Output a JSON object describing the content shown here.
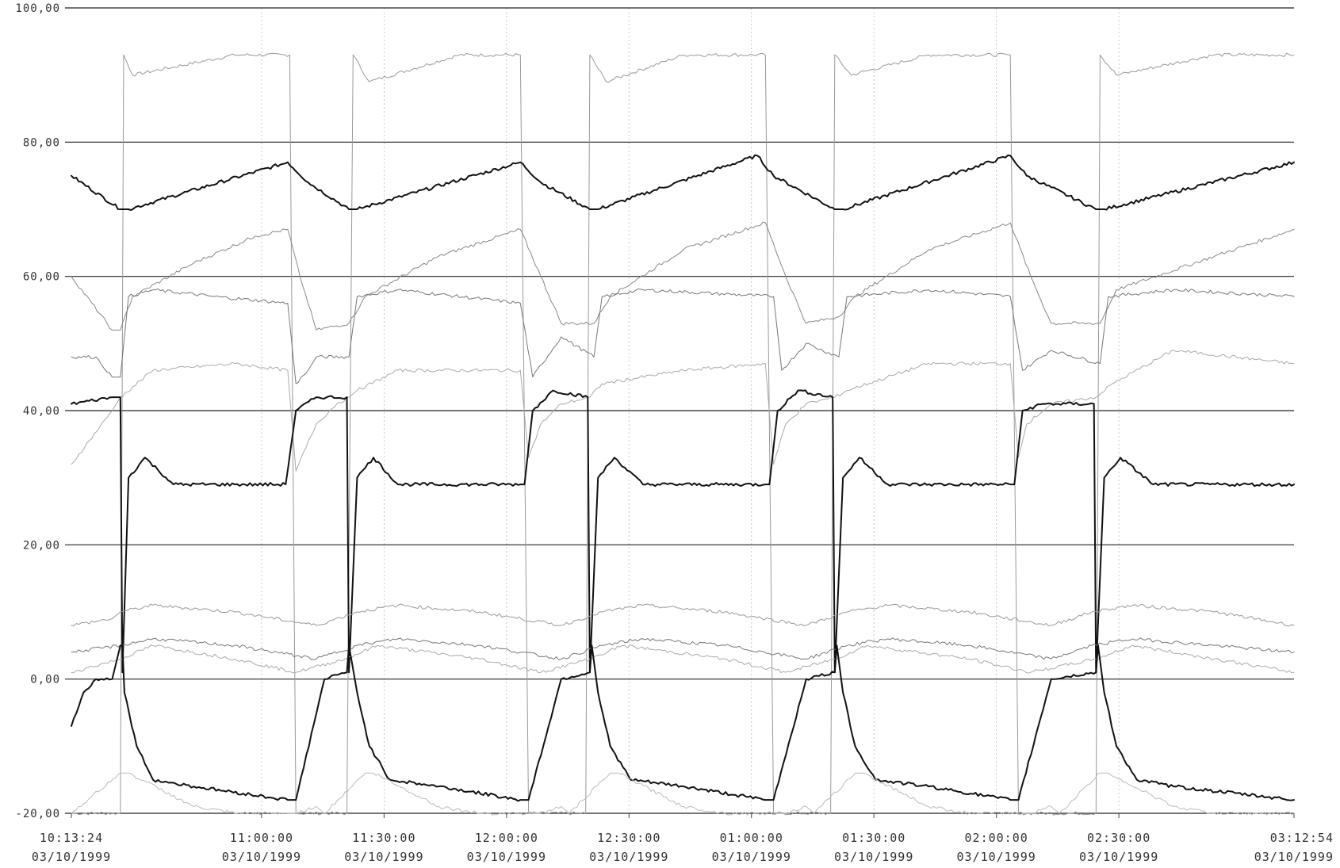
{
  "chart_data": {
    "type": "line",
    "title": "",
    "xlabel": "",
    "ylabel": "",
    "ylim": [
      -20,
      100
    ],
    "xlim_minutes_from_start": [
      0,
      299.5
    ],
    "grid": true,
    "legend": "none",
    "y_ticks": [
      {
        "value": 100,
        "label": "100,00"
      },
      {
        "value": 80,
        "label": "80,00"
      },
      {
        "value": 60,
        "label": "60,00"
      },
      {
        "value": 40,
        "label": "40,00"
      },
      {
        "value": 20,
        "label": "20,00"
      },
      {
        "value": 0,
        "label": "0,00"
      },
      {
        "value": -20,
        "label": "-20,00"
      }
    ],
    "x_ticks": [
      {
        "time": "10:13:24",
        "date": "03/10/1999"
      },
      {
        "time": "11:00:00",
        "date": "03/10/1999"
      },
      {
        "time": "11:30:00",
        "date": "03/10/1999"
      },
      {
        "time": "12:00:00",
        "date": "03/10/1999"
      },
      {
        "time": "12:30:00",
        "date": "03/10/1999"
      },
      {
        "time": "01:00:00",
        "date": "03/10/1999"
      },
      {
        "time": "01:30:00",
        "date": "03/10/1999"
      },
      {
        "time": "02:00:00",
        "date": "03/10/1999"
      },
      {
        "time": "02:30:00",
        "date": "03/10/1999"
      },
      {
        "time": "03:12:54",
        "date": "03/10/1999"
      }
    ],
    "series": [
      {
        "color": "#999999",
        "width": 1.0,
        "x": [
          0,
          12,
          12.8,
          15,
          40,
          53.5,
          55,
          67.5,
          69,
          73,
          95,
          110,
          112,
          126,
          127,
          131,
          150,
          170,
          172,
          186,
          187,
          191,
          210,
          230,
          232,
          251,
          252,
          256,
          280,
          299.5
        ],
        "y": [
          -20,
          -20,
          93,
          90,
          93,
          93,
          -20,
          -20,
          93,
          89,
          93,
          93,
          -20,
          -20,
          93,
          89,
          93,
          93,
          -20,
          -20,
          93,
          90,
          93,
          93,
          -20,
          -20,
          93,
          90,
          93,
          93
        ]
      },
      {
        "color": "#111111",
        "width": 2.0,
        "x": [
          0,
          12,
          14,
          53,
          58,
          68,
          70,
          110,
          115,
          127,
          129,
          168,
          172,
          187,
          189,
          230,
          234,
          251,
          253,
          299.5
        ],
        "y": [
          75,
          70,
          70,
          77,
          74,
          70,
          70,
          77,
          74,
          70,
          70,
          78,
          75,
          70,
          70,
          78,
          75,
          70,
          70,
          77
        ]
      },
      {
        "color": "#888888",
        "width": 1.0,
        "x": [
          0,
          10,
          12,
          15,
          30,
          45,
          53,
          56,
          60,
          68,
          72,
          90,
          110,
          115,
          120,
          128,
          132,
          150,
          170,
          175,
          180,
          188,
          192,
          210,
          230,
          235,
          240,
          252,
          256,
          280,
          299.5
        ],
        "y": [
          60,
          52,
          52,
          57,
          62,
          66,
          67,
          60,
          52,
          53,
          57,
          63,
          67,
          60,
          53,
          53,
          57,
          64,
          68,
          60,
          53,
          54,
          57,
          64,
          68,
          60,
          53,
          53,
          58,
          63,
          67
        ]
      },
      {
        "color": "#777777",
        "width": 1.0,
        "x": [
          0,
          6,
          10,
          12,
          14,
          20,
          35,
          53,
          55,
          58,
          60,
          68,
          70,
          80,
          110,
          113,
          120,
          128,
          130,
          140,
          172,
          174,
          180,
          188,
          190,
          210,
          230,
          233,
          240,
          252,
          254,
          270,
          299.5
        ],
        "y": [
          48,
          48,
          45,
          45,
          57,
          58,
          57,
          56,
          44,
          46,
          48,
          48,
          57,
          58,
          56,
          45,
          51,
          48,
          57,
          58,
          57,
          46,
          50,
          48,
          57,
          58,
          57,
          46,
          49,
          47,
          57,
          58,
          57
        ]
      },
      {
        "color": "#aaaaaa",
        "width": 1.0,
        "x": [
          0,
          10,
          12,
          20,
          40,
          53,
          55,
          60,
          65,
          68,
          70,
          80,
          110,
          112,
          115,
          120,
          127,
          130,
          150,
          170,
          172,
          175,
          180,
          187,
          190,
          210,
          230,
          232,
          234,
          240,
          251,
          255,
          270,
          299.5
        ],
        "y": [
          32,
          40,
          42,
          46,
          47,
          46,
          31,
          38,
          41,
          42,
          43,
          46,
          46,
          33,
          38,
          41,
          42,
          44,
          46,
          47,
          32,
          38,
          41,
          42,
          43,
          47,
          47,
          33,
          38,
          41,
          42,
          44,
          49,
          47
        ]
      },
      {
        "color": "#111111",
        "width": 2.0,
        "x": [
          0,
          10,
          12,
          12.5,
          14,
          18,
          25,
          40,
          52.5,
          55,
          60,
          67.5,
          68,
          70,
          74,
          80,
          110,
          111,
          113,
          118,
          126.5,
          127,
          129,
          133,
          140,
          170,
          171,
          173,
          178,
          186.5,
          187,
          189,
          193,
          200,
          230,
          231,
          233,
          238,
          250.5,
          251,
          253,
          257,
          265,
          299.5
        ],
        "y": [
          41,
          42,
          42,
          1,
          30,
          33,
          29,
          29,
          29,
          40,
          42,
          42,
          1,
          30,
          33,
          29,
          29,
          29,
          40,
          43,
          42,
          1,
          30,
          33,
          29,
          29,
          29,
          40,
          43,
          42,
          1,
          30,
          33,
          29,
          29,
          29,
          40,
          41,
          41,
          1,
          30,
          33,
          29,
          29
        ]
      },
      {
        "color": "#999999",
        "width": 1.0,
        "x": [
          0,
          10,
          12,
          20,
          40,
          60,
          70,
          80,
          100,
          120,
          130,
          140,
          160,
          180,
          190,
          200,
          220,
          240,
          250,
          260,
          280,
          299.5
        ],
        "y": [
          8,
          9,
          10,
          11,
          10,
          8,
          10,
          11,
          10,
          8,
          10,
          11,
          10,
          8,
          10,
          11,
          10,
          8,
          10,
          11,
          10,
          8
        ]
      },
      {
        "color": "#777777",
        "width": 1.0,
        "x": [
          0,
          12,
          20,
          40,
          60,
          70,
          80,
          100,
          120,
          130,
          140,
          160,
          180,
          190,
          200,
          220,
          240,
          250,
          260,
          280,
          299.5
        ],
        "y": [
          4,
          5,
          6,
          5,
          3,
          5,
          6,
          5,
          3,
          5,
          6,
          5,
          3,
          5,
          6,
          5,
          3,
          5,
          6,
          5,
          4
        ]
      },
      {
        "color": "#aaaaaa",
        "width": 1.0,
        "x": [
          0,
          12,
          20,
          40,
          55,
          67,
          75,
          100,
          115,
          127,
          135,
          160,
          175,
          187,
          195,
          220,
          235,
          251,
          260,
          280,
          299.5
        ],
        "y": [
          1,
          3,
          5,
          3,
          1,
          3,
          5,
          3,
          1,
          3,
          5,
          3,
          1,
          3,
          5,
          3,
          1,
          3,
          5,
          3,
          1
        ]
      },
      {
        "color": "#111111",
        "width": 2.0,
        "x": [
          0,
          3,
          6,
          10,
          12,
          12.5,
          13,
          16,
          20,
          30,
          53,
          55,
          62,
          67.5,
          68,
          70,
          73,
          78,
          90,
          110,
          112,
          120,
          127,
          127.5,
          129,
          132,
          137,
          150,
          170,
          172,
          180,
          187,
          187.5,
          189,
          192,
          197,
          210,
          230,
          232,
          240,
          251,
          251.5,
          253,
          256,
          261,
          270,
          299.5
        ],
        "y": [
          -7,
          -2,
          0,
          0,
          5,
          5,
          -2,
          -10,
          -15,
          -16,
          -18,
          -18,
          0,
          1,
          5,
          -2,
          -10,
          -15,
          -16,
          -18,
          -18,
          0,
          1,
          5,
          -2,
          -10,
          -15,
          -16,
          -18,
          -18,
          0,
          1,
          5,
          -2,
          -10,
          -15,
          -16,
          -18,
          -18,
          0,
          1,
          5,
          -2,
          -10,
          -15,
          -16,
          -18
        ]
      },
      {
        "color": "#bbbbbb",
        "width": 1.0,
        "x": [
          0,
          12,
          14,
          30,
          40,
          53,
          55,
          60,
          62,
          72,
          74,
          90,
          100,
          113,
          115,
          120,
          122,
          132,
          134,
          150,
          160,
          173,
          175,
          180,
          182,
          192,
          194,
          210,
          220,
          233,
          235,
          240,
          242,
          252,
          254,
          270,
          280,
          299.5
        ],
        "y": [
          -20,
          -14,
          -14,
          -19,
          -20,
          -20,
          -20,
          -19,
          -20,
          -14,
          -14,
          -19,
          -20,
          -20,
          -20,
          -19,
          -20,
          -14,
          -14,
          -19,
          -20,
          -20,
          -20,
          -19,
          -20,
          -14,
          -14,
          -19,
          -20,
          -20,
          -20,
          -19,
          -20,
          -14,
          -14,
          -19,
          -20,
          -20
        ]
      }
    ]
  }
}
